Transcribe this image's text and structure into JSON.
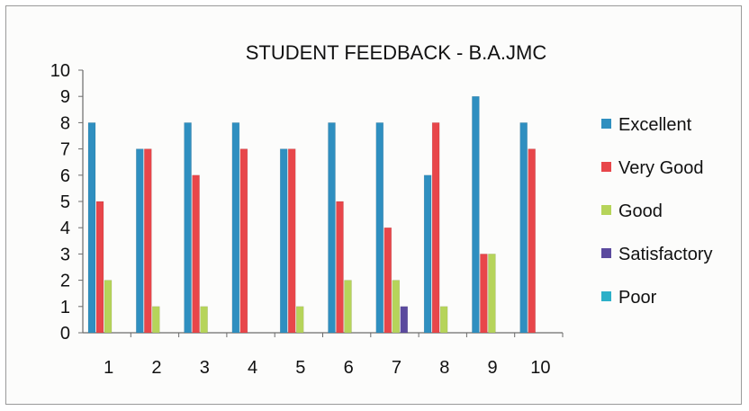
{
  "chart_data": {
    "type": "bar",
    "title": "STUDENT FEEDBACK - B.A.JMC",
    "xlabel": "",
    "ylabel": "",
    "categories": [
      "1",
      "2",
      "3",
      "4",
      "5",
      "6",
      "7",
      "8",
      "9",
      "10"
    ],
    "ylim": [
      0,
      10
    ],
    "yticks": [
      "0",
      "1",
      "2",
      "3",
      "4",
      "5",
      "6",
      "7",
      "8",
      "9",
      "10"
    ],
    "grid": false,
    "legend_position": "right",
    "series": [
      {
        "name": "Excellent",
        "color": "#2f8fc0",
        "values": [
          8,
          7,
          8,
          8,
          7,
          8,
          8,
          6,
          9,
          8
        ]
      },
      {
        "name": "Very Good",
        "color": "#e8464a",
        "values": [
          5,
          7,
          6,
          7,
          7,
          5,
          4,
          8,
          3,
          7
        ]
      },
      {
        "name": "Good",
        "color": "#b6d45a",
        "values": [
          2,
          1,
          1,
          0,
          1,
          2,
          2,
          1,
          3,
          0
        ]
      },
      {
        "name": "Satisfactory",
        "color": "#5b4a9e",
        "values": [
          0,
          0,
          0,
          0,
          0,
          0,
          1,
          0,
          0,
          0
        ]
      },
      {
        "name": "Poor",
        "color": "#2cb0c8",
        "values": [
          0,
          0,
          0,
          0,
          0,
          0,
          0,
          0,
          0,
          0
        ]
      }
    ]
  }
}
